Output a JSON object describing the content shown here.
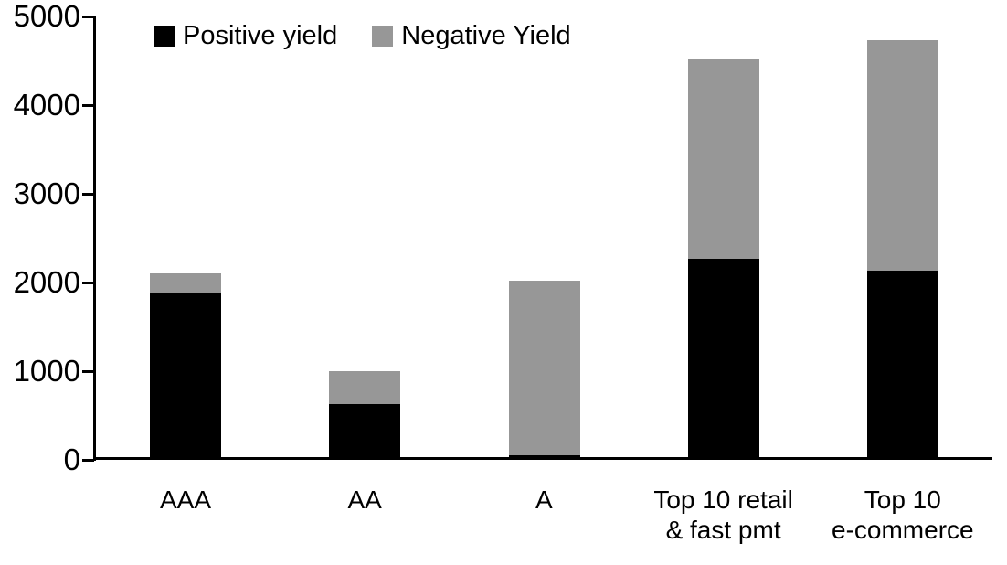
{
  "chart_data": {
    "type": "bar",
    "stacked": true,
    "title": "",
    "xlabel": "",
    "ylabel": "",
    "categories": [
      "AAA",
      "AA",
      "A",
      "Top 10 retail & fast pmt",
      "Top 10 e-commerce"
    ],
    "category_lines": [
      [
        "AAA"
      ],
      [
        "AA"
      ],
      [
        "A"
      ],
      [
        "Top 10 retail",
        "& fast pmt"
      ],
      [
        "Top 10",
        "e-commerce"
      ]
    ],
    "series": [
      {
        "name": "Positive yield",
        "color": "#000000",
        "values": [
          1880,
          625,
          55,
          2270,
          2130
        ]
      },
      {
        "name": "Negative Yield",
        "color": "#979797",
        "values": [
          225,
          380,
          1970,
          2260,
          2600
        ]
      }
    ],
    "ylim": [
      0,
      5000
    ],
    "yticks": [
      0,
      1000,
      2000,
      3000,
      4000,
      5000
    ],
    "grid": false,
    "legend_position": "top-inside"
  }
}
